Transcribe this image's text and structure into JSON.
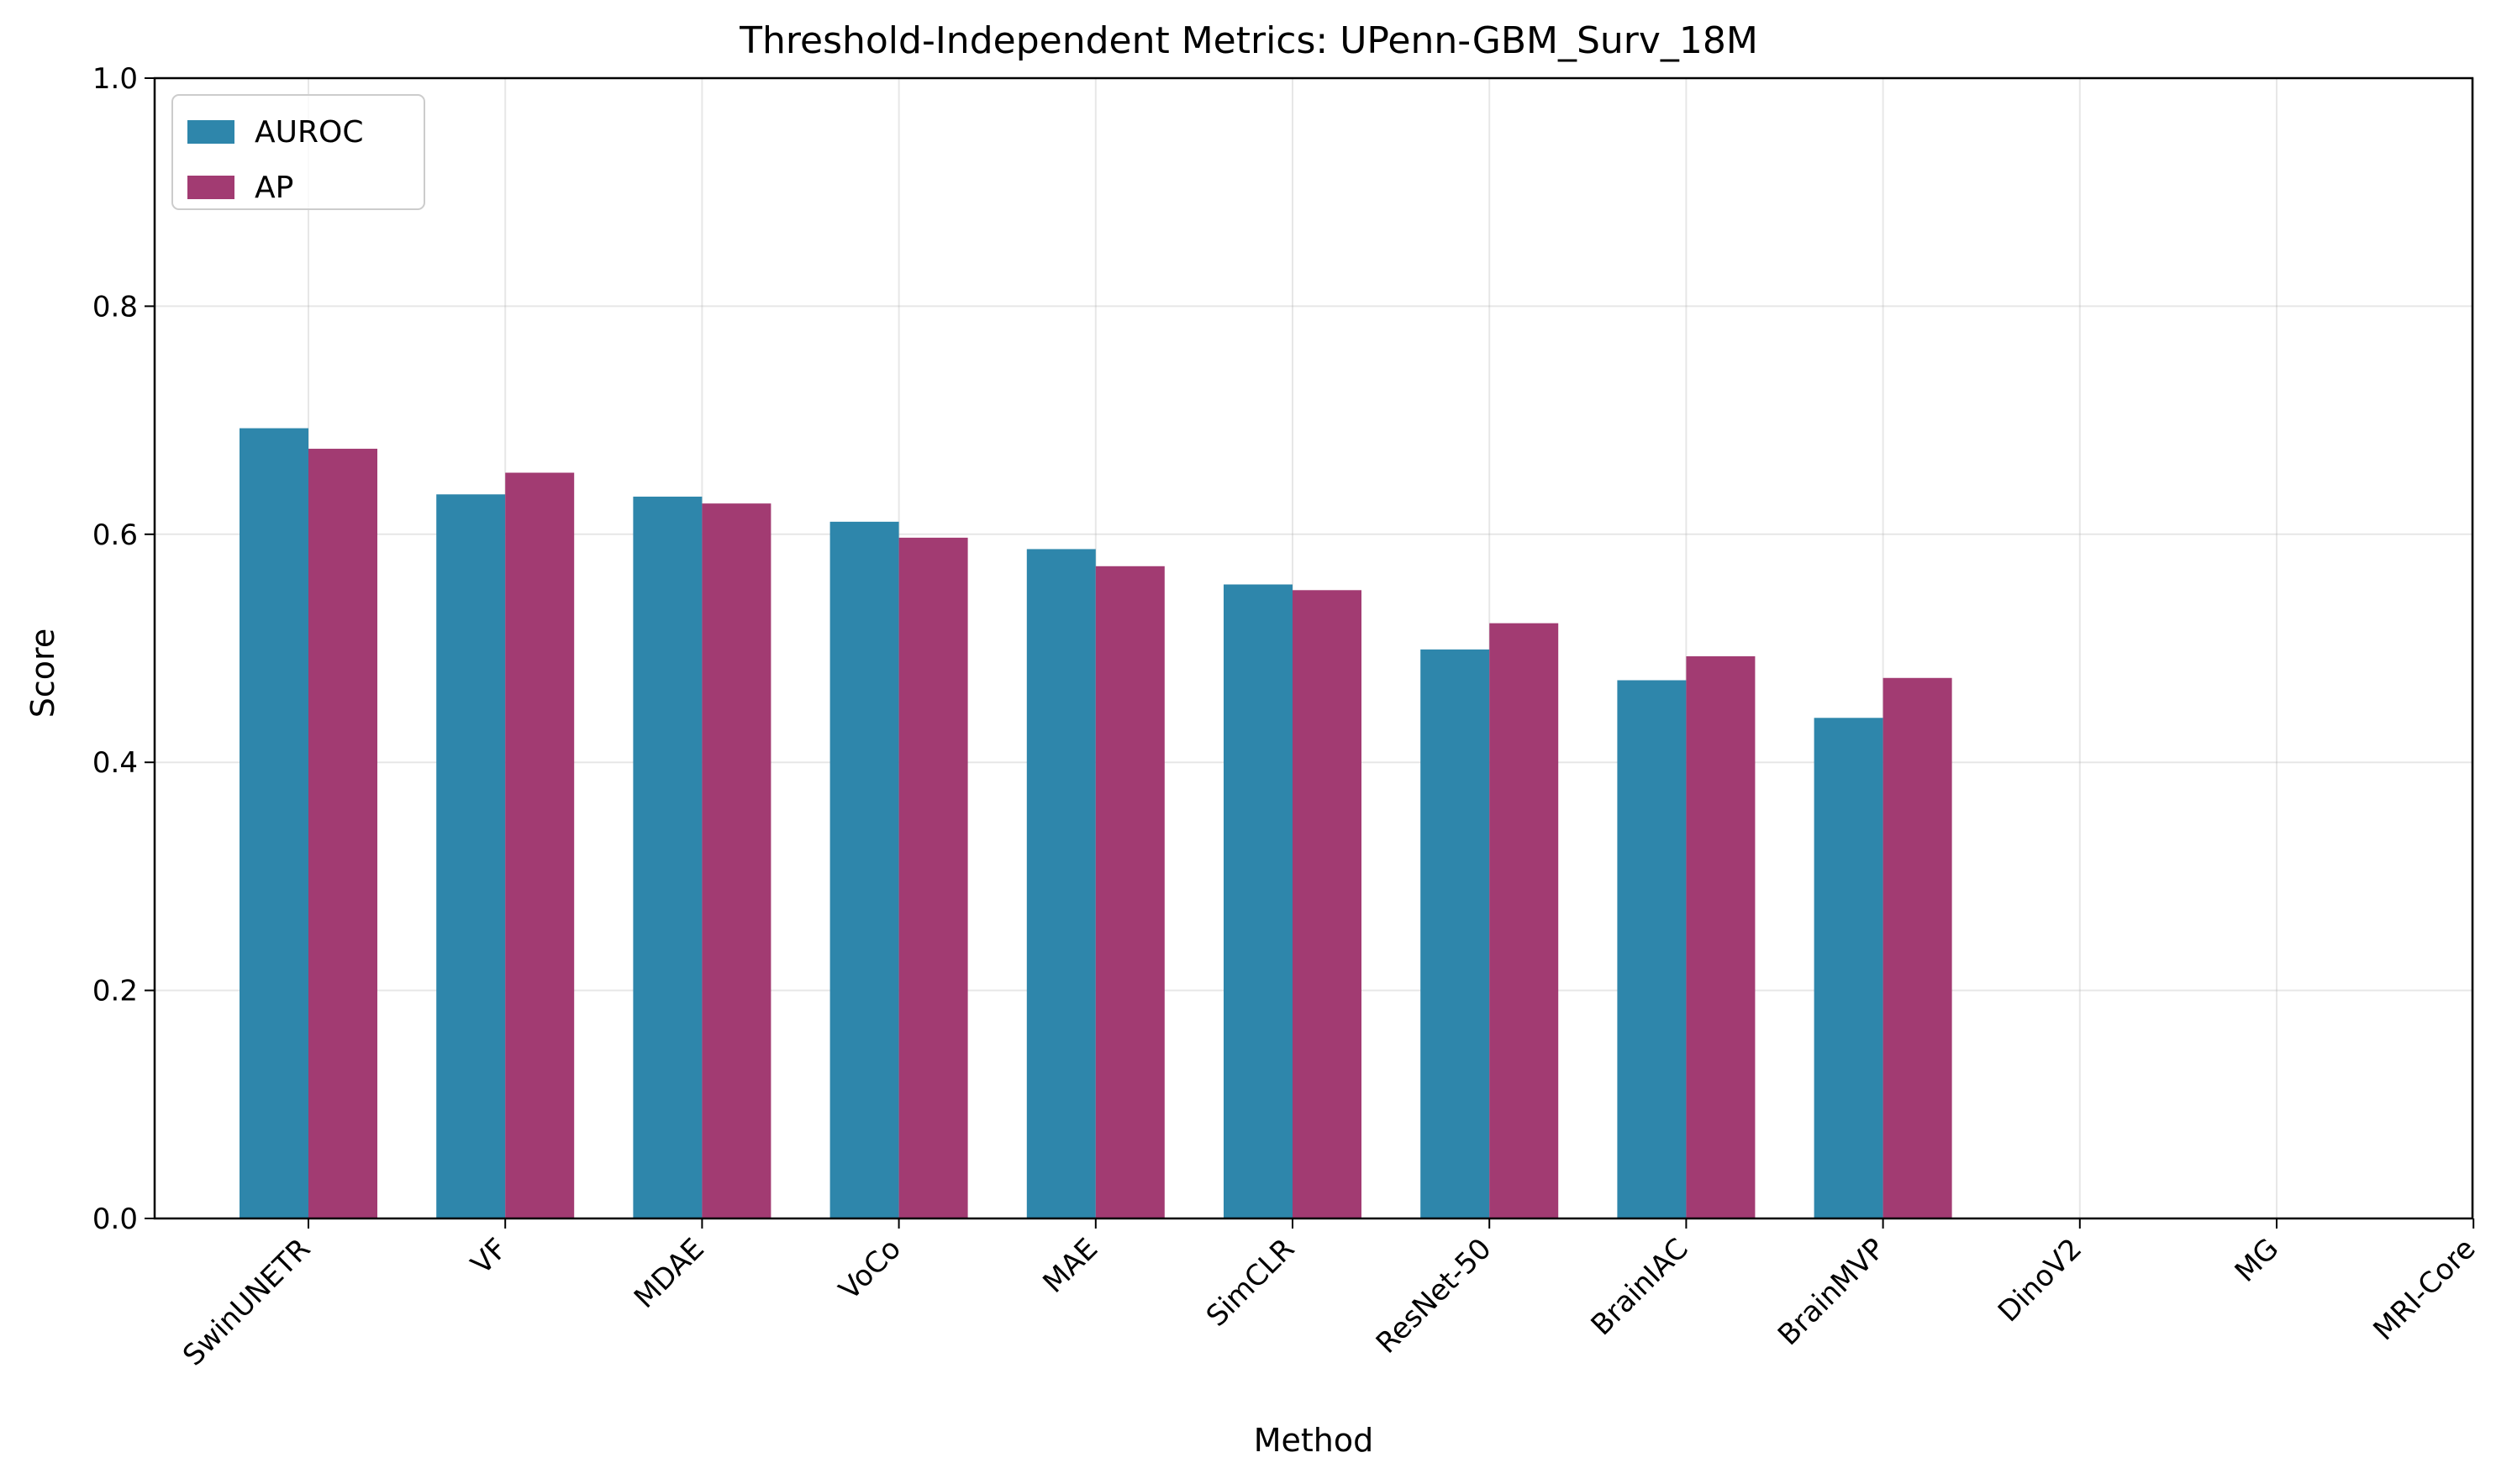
{
  "chart_data": {
    "type": "bar",
    "title": "Threshold-Independent Metrics: UPenn-GBM_Surv_18M",
    "xlabel": "Method",
    "ylabel": "Score",
    "ylim": [
      0,
      1.0
    ],
    "yticks": [
      "0.0",
      "0.2",
      "0.4",
      "0.6",
      "0.8",
      "1.0"
    ],
    "categories": [
      "SwinUNETR",
      "VF",
      "MDAE",
      "VoCo",
      "MAE",
      "SimCLR",
      "ResNet-50",
      "BrainIAC",
      "BrainMVP",
      "DinoV2",
      "MG",
      "MRI-Core"
    ],
    "series": [
      {
        "name": "AUROC",
        "color": "#2e86ab",
        "values": [
          0.693,
          0.635,
          0.633,
          0.611,
          0.587,
          0.556,
          0.499,
          0.472,
          0.439,
          null,
          null,
          null
        ]
      },
      {
        "name": "AP",
        "color": "#a23b72",
        "values": [
          0.675,
          0.654,
          0.627,
          0.597,
          0.572,
          0.551,
          0.522,
          0.493,
          0.474,
          null,
          null,
          null
        ]
      }
    ],
    "grid": true,
    "legend_position": "top-left"
  }
}
